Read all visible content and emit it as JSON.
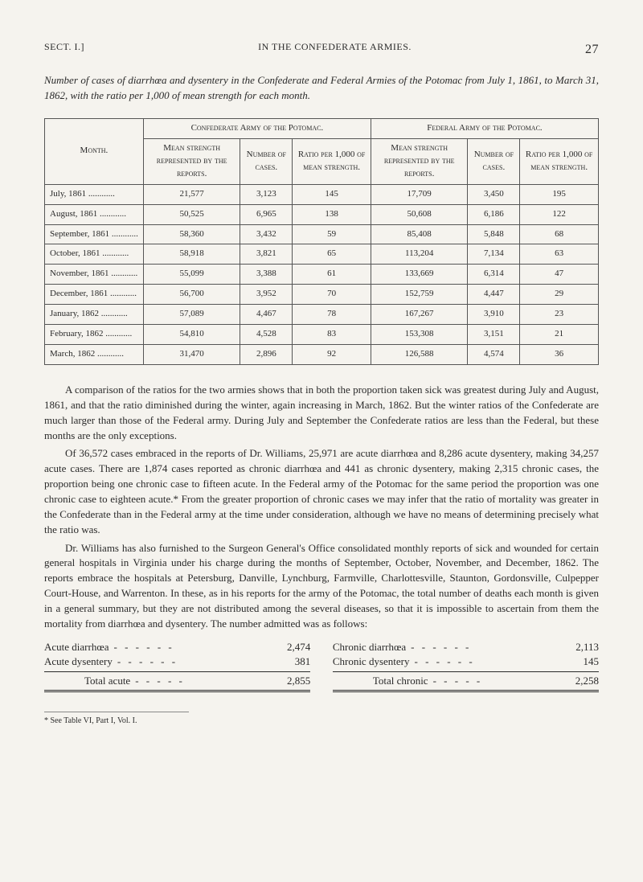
{
  "header": {
    "sect": "SECT. I.]",
    "running": "IN THE CONFEDERATE ARMIES.",
    "page": "27"
  },
  "title": "Number of cases of diarrhœa and dysentery in the Confederate and Federal Armies of the Potomac from July 1, 1861, to March 31, 1862, with the ratio per 1,000 of mean strength for each month.",
  "table": {
    "top_headers": {
      "month": "Month.",
      "confederate": "Confederate Army of the Potomac.",
      "federal": "Federal Army of the Potomac."
    },
    "sub_headers": {
      "mean": "Mean strength represented by the reports.",
      "cases": "Number of cases.",
      "ratio": "Ratio per 1,000 of mean strength."
    },
    "rows": [
      {
        "m": "July, 1861",
        "c": [
          "21,577",
          "3,123",
          "145"
        ],
        "f": [
          "17,709",
          "3,450",
          "195"
        ]
      },
      {
        "m": "August, 1861",
        "c": [
          "50,525",
          "6,965",
          "138"
        ],
        "f": [
          "50,608",
          "6,186",
          "122"
        ]
      },
      {
        "m": "September, 1861",
        "c": [
          "58,360",
          "3,432",
          "59"
        ],
        "f": [
          "85,408",
          "5,848",
          "68"
        ]
      },
      {
        "m": "October, 1861",
        "c": [
          "58,918",
          "3,821",
          "65"
        ],
        "f": [
          "113,204",
          "7,134",
          "63"
        ]
      },
      {
        "m": "November, 1861",
        "c": [
          "55,099",
          "3,388",
          "61"
        ],
        "f": [
          "133,669",
          "6,314",
          "47"
        ]
      },
      {
        "m": "December, 1861",
        "c": [
          "56,700",
          "3,952",
          "70"
        ],
        "f": [
          "152,759",
          "4,447",
          "29"
        ]
      },
      {
        "m": "January, 1862",
        "c": [
          "57,089",
          "4,467",
          "78"
        ],
        "f": [
          "167,267",
          "3,910",
          "23"
        ]
      },
      {
        "m": "February, 1862",
        "c": [
          "54,810",
          "4,528",
          "83"
        ],
        "f": [
          "153,308",
          "3,151",
          "21"
        ]
      },
      {
        "m": "March, 1862",
        "c": [
          "31,470",
          "2,896",
          "92"
        ],
        "f": [
          "126,588",
          "4,574",
          "36"
        ]
      }
    ]
  },
  "paragraphs": [
    "A comparison of the ratios for the two armies shows that in both the proportion taken sick was greatest during July and August, 1861, and that the ratio diminished during the winter, again increasing in March, 1862. But the winter ratios of the Confederate are much larger than those of the Federal army. During July and September the Confederate ratios are less than the Federal, but these months are the only exceptions.",
    "Of 36,572 cases embraced in the reports of Dr. Williams, 25,971 are acute diarrhœa and 8,286 acute dysentery, making 34,257 acute cases. There are 1,874 cases reported as chronic diarrhœa and 441 as chronic dysentery, making 2,315 chronic cases, the proportion being one chronic case to fifteen acute. In the Federal army of the Potomac for the same period the proportion was one chronic case to eighteen acute.* From the greater proportion of chronic cases we may infer that the ratio of mortality was greater in the Confederate than in the Federal army at the time under consideration, although we have no means of determining precisely what the ratio was.",
    "Dr. Williams has also furnished to the Surgeon General's Office consolidated monthly reports of sick and wounded for certain general hospitals in Virginia under his charge during the months of September, October, November, and December, 1862. The reports embrace the hospitals at Petersburg, Danville, Lynchburg, Farmville, Charlottesville, Staunton, Gordonsville, Culpepper Court-House, and Warrenton. In these, as in his reports for the army of the Potomac, the total number of deaths each month is given in a general summary, but they are not distributed among the several diseases, so that it is impossible to ascertain from them the mortality from diarrhœa and dysentery. The number admitted was as follows:"
  ],
  "totals": {
    "left": [
      {
        "label": "Acute diarrhœa",
        "val": "2,474"
      },
      {
        "label": "Acute dysentery",
        "val": "381"
      }
    ],
    "left_total": {
      "label": "Total acute",
      "val": "2,855"
    },
    "right": [
      {
        "label": "Chronic diarrhœa",
        "val": "2,113"
      },
      {
        "label": "Chronic dysentery",
        "val": "145"
      }
    ],
    "right_total": {
      "label": "Total chronic",
      "val": "2,258"
    }
  },
  "footnote": "* See Table VI, Part I, Vol. I."
}
